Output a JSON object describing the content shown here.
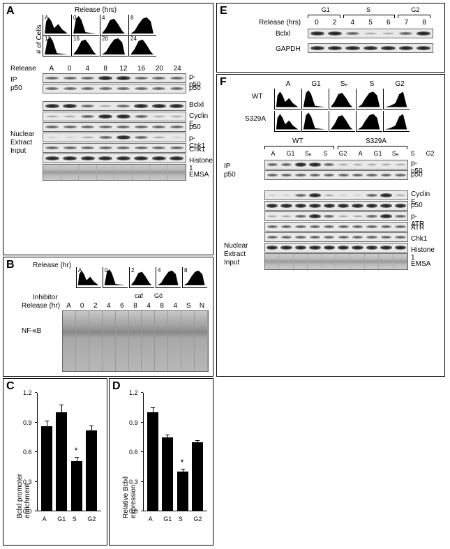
{
  "panels": {
    "A": {
      "label": "A",
      "release_header": "Release (hrs)",
      "yaxis_label": "# of Cells",
      "histo_labels": [
        "A",
        "0",
        "4",
        "8",
        "12",
        "16",
        "20",
        "24"
      ],
      "release_row_label": "Release",
      "release_values": [
        "A",
        "0",
        "4",
        "8",
        "12",
        "16",
        "20",
        "24"
      ],
      "ip_label": "IP\np50",
      "nuclear_label": "Nuclear\nExtract\nInput",
      "blot_labels": [
        "p-p50",
        "p50",
        "Bclxl",
        "Cyclin E",
        "p50",
        "p-Chk1",
        "Chk1",
        "Histone 1",
        "EMSA"
      ],
      "bands": {
        "p-p50": [
          "med",
          "med",
          "med",
          "dark",
          "dark",
          "med",
          "med",
          "med"
        ],
        "p50_1": [
          "med",
          "med",
          "med",
          "med",
          "med",
          "med",
          "med",
          "med"
        ],
        "Bclxl": [
          "dark",
          "dark",
          "med",
          "light",
          "med",
          "dark",
          "dark",
          "dark"
        ],
        "CyclinE": [
          "light",
          "light",
          "med",
          "dark",
          "dark",
          "med",
          "light",
          "light"
        ],
        "p50_2": [
          "med",
          "med",
          "med",
          "med",
          "med",
          "med",
          "med",
          "med"
        ],
        "pChk1": [
          "faint",
          "faint",
          "light",
          "med",
          "dark",
          "med",
          "light",
          "faint"
        ],
        "Chk1": [
          "med",
          "med",
          "med",
          "med",
          "med",
          "med",
          "med",
          "med"
        ],
        "Histone1": [
          "dark",
          "dark",
          "dark",
          "dark",
          "dark",
          "dark",
          "dark",
          "dark"
        ]
      }
    },
    "B": {
      "label": "B",
      "release_header": "Release (hr)",
      "histo_labels": [
        "A",
        "0",
        "2",
        "4",
        "8"
      ],
      "inhibitor_label": "Inhibitor",
      "release_row_label": "Release (hr)",
      "lane_labels": [
        "A",
        "0",
        "2",
        "4",
        "6",
        "8",
        "4",
        "8",
        "4",
        "S",
        "N"
      ],
      "inhibitor_groups": [
        "caf",
        "Gö"
      ],
      "nfkb_label": "NF-κB"
    },
    "C": {
      "label": "C",
      "ylabel": "Bclxl promoter\nenrichment",
      "categories": [
        "A",
        "G1",
        "S",
        "G2"
      ],
      "values": [
        0.86,
        1.0,
        0.51,
        0.82
      ],
      "errors": [
        0.06,
        0.08,
        0.04,
        0.05
      ],
      "ymax": 1.2,
      "ytick_step": 0.3,
      "star_index": 2
    },
    "D": {
      "label": "D",
      "ylabel": "Relative Bclxl\nexpression",
      "categories": [
        "A",
        "G1",
        "S",
        "G2"
      ],
      "values": [
        1.0,
        0.75,
        0.4,
        0.7
      ],
      "errors": [
        0.05,
        0.03,
        0.03,
        0.02
      ],
      "ymax": 1.2,
      "ytick_step": 0.3,
      "star_index": 2
    },
    "E": {
      "label": "E",
      "release_label": "Release (hrs)",
      "phase_groups": [
        "G1",
        "S",
        "G2"
      ],
      "lane_labels": [
        "0",
        "2",
        "4",
        "5",
        "6",
        "7",
        "8"
      ],
      "blot_labels": [
        "Bclxl",
        "GAPDH"
      ],
      "bands": {
        "Bclxl": [
          "dark",
          "dark",
          "med",
          "light",
          "light",
          "med",
          "dark"
        ],
        "GAPDH": [
          "dark",
          "dark",
          "dark",
          "dark",
          "dark",
          "dark",
          "dark"
        ]
      }
    },
    "F": {
      "label": "F",
      "wt_label": "WT",
      "mut_label": "S329A",
      "phase_labels": [
        "A",
        "G1",
        "Sₑ",
        "S",
        "G2"
      ],
      "group_headers": [
        "WT",
        "S329A"
      ],
      "lane_labels": [
        "A",
        "G1",
        "Sₑ",
        "S",
        "G2",
        "A",
        "G1",
        "Sₑ",
        "S",
        "G2"
      ],
      "ip_label": "IP\np50",
      "nuclear_label": "Nuclear\nExtract\nInput",
      "blot_labels": [
        "p-p50",
        "p50",
        "Cyclin E",
        "p50",
        "p-ATR",
        "ATR",
        "Chk1",
        "Histone 1",
        "EMSA"
      ],
      "bands": {
        "p-p50": [
          "med",
          "med",
          "dark",
          "dark",
          "med",
          "light",
          "light",
          "light",
          "light",
          "light"
        ],
        "p50_1": [
          "med",
          "med",
          "med",
          "med",
          "med",
          "med",
          "med",
          "med",
          "med",
          "med"
        ],
        "CyclinE": [
          "faint",
          "faint",
          "med",
          "dark",
          "light",
          "faint",
          "faint",
          "med",
          "dark",
          "light"
        ],
        "p50_2": [
          "dark",
          "dark",
          "dark",
          "dark",
          "dark",
          "dark",
          "dark",
          "dark",
          "dark",
          "dark"
        ],
        "pATR": [
          "light",
          "light",
          "med",
          "dark",
          "med",
          "light",
          "light",
          "med",
          "dark",
          "med"
        ],
        "ATR": [
          "med",
          "med",
          "med",
          "med",
          "med",
          "med",
          "med",
          "med",
          "med",
          "med"
        ],
        "Chk1": [
          "med",
          "med",
          "med",
          "med",
          "med",
          "med",
          "med",
          "med",
          "med",
          "med"
        ],
        "Histone1": [
          "dark",
          "dark",
          "dark",
          "dark",
          "dark",
          "dark",
          "dark",
          "dark",
          "dark",
          "dark"
        ]
      }
    }
  },
  "colors": {
    "bar": "#000000",
    "bg": "#ffffff",
    "border": "#000000"
  }
}
